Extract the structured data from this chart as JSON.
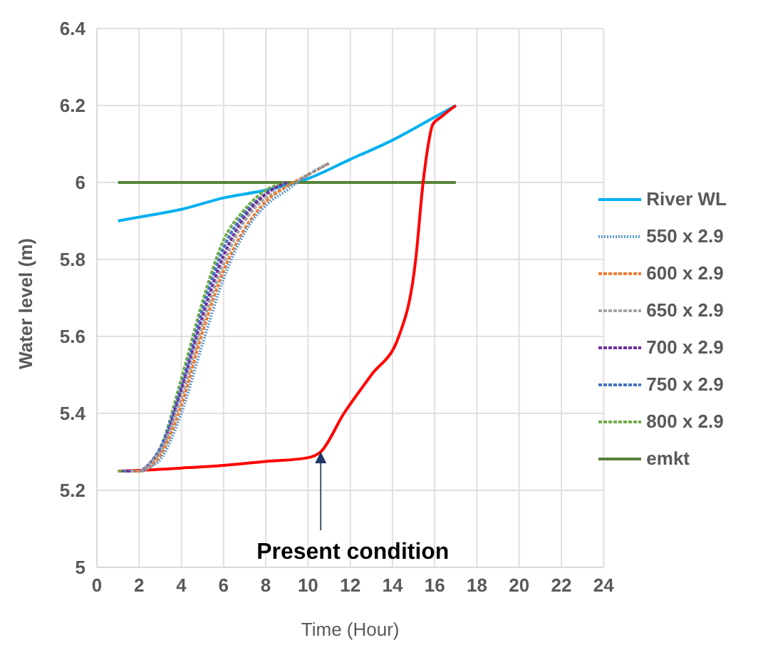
{
  "chart_data": {
    "type": "line",
    "xlabel": "Time (Hour)",
    "ylabel": "Water level (m)",
    "xlim": [
      0,
      24
    ],
    "xticks": [
      0,
      2,
      4,
      6,
      8,
      10,
      12,
      14,
      16,
      18,
      20,
      22,
      24
    ],
    "ylim": [
      5,
      6.4
    ],
    "yticks": [
      5,
      5.2,
      5.4,
      5.6,
      5.8,
      6,
      6.2,
      6.4
    ],
    "grid": true,
    "legend": "right",
    "marker": "none",
    "annotations": [
      {
        "text": "Present condition",
        "x": 10.6,
        "y": 5.3
      }
    ],
    "series": [
      {
        "name": "River WL",
        "color": "#00b0f0",
        "line_style": "solid",
        "x": [
          1,
          2,
          4,
          6,
          8,
          10,
          12,
          14,
          16,
          17
        ],
        "values": [
          5.9,
          5.91,
          5.93,
          5.96,
          5.98,
          6.01,
          6.06,
          6.11,
          6.17,
          6.2
        ]
      },
      {
        "name": "550 x 2.9",
        "color": "#5b9bd5",
        "line_style": "dotted",
        "x": [
          2,
          2.1,
          2.5,
          3,
          4,
          5,
          6,
          7,
          8,
          9,
          10,
          11
        ],
        "values": [
          5.25,
          5.25,
          5.26,
          5.28,
          5.4,
          5.58,
          5.75,
          5.87,
          5.94,
          5.98,
          6.02,
          6.05
        ]
      },
      {
        "name": "600 x 2.9",
        "color": "#ed7d31",
        "line_style": "dashed",
        "x": [
          1.8,
          2,
          2.5,
          3,
          4,
          5,
          6,
          7,
          8,
          9,
          10,
          11
        ],
        "values": [
          5.25,
          5.25,
          5.26,
          5.29,
          5.42,
          5.61,
          5.77,
          5.88,
          5.95,
          5.99,
          6.02,
          6.05
        ]
      },
      {
        "name": "650 x 2.9",
        "color": "#a5a5a5",
        "line_style": "dashed",
        "x": [
          1.6,
          2,
          2.5,
          3,
          4,
          5,
          6,
          7,
          8,
          9,
          10
        ],
        "values": [
          5.25,
          5.25,
          5.27,
          5.3,
          5.44,
          5.63,
          5.79,
          5.9,
          5.96,
          5.99,
          6.02
        ]
      },
      {
        "name": "700 x 2.9",
        "color": "#7030a0",
        "line_style": "dashed",
        "x": [
          1.4,
          2,
          2.5,
          3,
          4,
          5,
          6,
          7,
          8,
          9
        ],
        "values": [
          5.25,
          5.25,
          5.27,
          5.3,
          5.46,
          5.65,
          5.81,
          5.91,
          5.97,
          6.0
        ]
      },
      {
        "name": "750 x 2.9",
        "color": "#4472c4",
        "line_style": "dashed",
        "x": [
          1.2,
          2,
          2.5,
          3,
          4,
          5,
          6,
          7,
          8,
          9
        ],
        "values": [
          5.25,
          5.25,
          5.27,
          5.31,
          5.47,
          5.67,
          5.83,
          5.92,
          5.97,
          6.0
        ]
      },
      {
        "name": "800 x 2.9",
        "color": "#70ad47",
        "line_style": "dashed",
        "x": [
          1,
          2,
          2.5,
          3,
          4,
          5,
          6,
          7,
          8,
          9
        ],
        "values": [
          5.25,
          5.25,
          5.27,
          5.31,
          5.49,
          5.69,
          5.85,
          5.93,
          5.98,
          6.0
        ]
      },
      {
        "name": "emkt",
        "color": "#548235",
        "line_style": "solid",
        "x": [
          1,
          17
        ],
        "values": [
          6,
          6
        ]
      },
      {
        "color": "#ff0000",
        "line_style": "solid",
        "x": [
          1,
          2,
          4,
          6,
          8,
          10,
          10.6,
          11.7,
          13,
          14.3,
          15.1,
          15.45,
          15.7,
          15.9,
          16.3,
          17
        ],
        "values": [
          5.25,
          5.252,
          5.258,
          5.265,
          5.275,
          5.285,
          5.3,
          5.4,
          5.5,
          5.6,
          5.8,
          6,
          6.1,
          6.15,
          6.17,
          6.2
        ]
      }
    ]
  }
}
